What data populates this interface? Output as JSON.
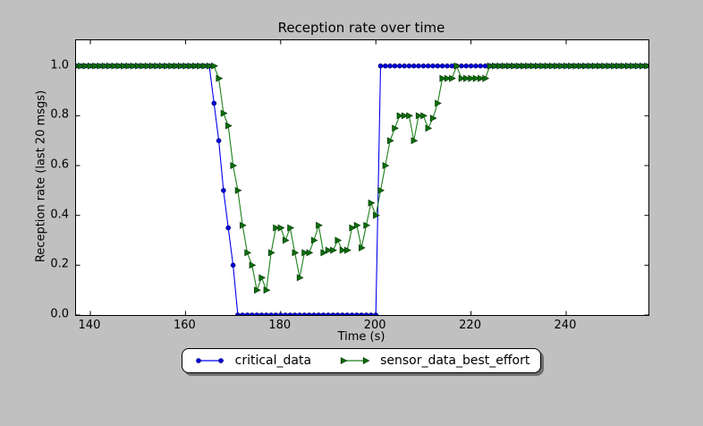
{
  "figure": {
    "background_color": "#c0c0c0",
    "plot_background_color": "#ffffff",
    "legend_shadow_color": "#6e6e6e"
  },
  "chart_data": {
    "type": "line",
    "title": "Reception rate over time",
    "xlabel": "Time (s)",
    "ylabel": "Reception rate (last 20 msgs)",
    "xlim": [
      137,
      257.3
    ],
    "ylim": [
      0,
      1.103
    ],
    "grid": false,
    "legend_position": "bottom-center",
    "xticks": [
      {
        "label": "140",
        "value": 140
      },
      {
        "label": "160",
        "value": 160
      },
      {
        "label": "180",
        "value": 180
      },
      {
        "label": "200",
        "value": 200
      },
      {
        "label": "220",
        "value": 220
      },
      {
        "label": "240",
        "value": 240
      }
    ],
    "yticks": [
      {
        "label": "0.0",
        "value": 0.0
      },
      {
        "label": "0.2",
        "value": 0.2
      },
      {
        "label": "0.4",
        "value": 0.4
      },
      {
        "label": "0.6",
        "value": 0.6
      },
      {
        "label": "0.8",
        "value": 0.8
      },
      {
        "label": "1.0",
        "value": 1.0
      }
    ],
    "point_encoding": "entries are [x,y] pairs; ['run',xStart,xEnd,y] means y is constant for every integer x in [xStart,xEnd]",
    "series": [
      {
        "name": "critical_data",
        "line_color": "#0000ee",
        "marker": "circle",
        "marker_fill": "#0000dd",
        "marker_edge": "#000080",
        "points": [
          [
            "run",
            137,
            165,
            1.0
          ],
          [
            166,
            0.85
          ],
          [
            167,
            0.7
          ],
          [
            168,
            0.5
          ],
          [
            169,
            0.35
          ],
          [
            170,
            0.2
          ],
          [
            "run",
            171,
            200,
            0.0
          ],
          [
            "run",
            201,
            257,
            1.0
          ]
        ]
      },
      {
        "name": "sensor_data_best_effort",
        "line_color": "#1a801a",
        "marker": "triangle-right",
        "marker_fill": "#0a700a",
        "marker_edge": "#033703",
        "points": [
          [
            "run",
            137,
            166,
            1.0
          ],
          [
            167,
            0.95
          ],
          [
            168,
            0.81
          ],
          [
            169,
            0.76
          ],
          [
            170,
            0.6
          ],
          [
            171,
            0.5
          ],
          [
            172,
            0.36
          ],
          [
            173,
            0.25
          ],
          [
            174,
            0.2
          ],
          [
            175,
            0.1
          ],
          [
            176,
            0.15
          ],
          [
            177,
            0.1
          ],
          [
            178,
            0.25
          ],
          [
            179,
            0.35
          ],
          [
            180,
            0.35
          ],
          [
            181,
            0.3
          ],
          [
            182,
            0.35
          ],
          [
            183,
            0.25
          ],
          [
            184,
            0.15
          ],
          [
            185,
            0.25
          ],
          [
            186,
            0.25
          ],
          [
            187,
            0.3
          ],
          [
            188,
            0.36
          ],
          [
            189,
            0.25
          ],
          [
            190,
            0.26
          ],
          [
            191,
            0.26
          ],
          [
            192,
            0.3
          ],
          [
            193,
            0.26
          ],
          [
            194,
            0.26
          ],
          [
            195,
            0.35
          ],
          [
            196,
            0.36
          ],
          [
            197,
            0.27
          ],
          [
            198,
            0.36
          ],
          [
            199,
            0.45
          ],
          [
            200,
            0.4
          ],
          [
            201,
            0.5
          ],
          [
            202,
            0.6
          ],
          [
            203,
            0.7
          ],
          [
            204,
            0.75
          ],
          [
            205,
            0.8
          ],
          [
            206,
            0.8
          ],
          [
            207,
            0.8
          ],
          [
            208,
            0.7
          ],
          [
            209,
            0.8
          ],
          [
            210,
            0.8
          ],
          [
            211,
            0.75
          ],
          [
            212,
            0.79
          ],
          [
            213,
            0.85
          ],
          [
            214,
            0.95
          ],
          [
            215,
            0.95
          ],
          [
            216,
            0.95
          ],
          [
            217,
            1.0
          ],
          [
            218,
            0.95
          ],
          [
            219,
            0.95
          ],
          [
            220,
            0.95
          ],
          [
            221,
            0.95
          ],
          [
            222,
            0.95
          ],
          [
            223,
            0.95
          ],
          [
            "run",
            224,
            257,
            1.0
          ]
        ]
      }
    ]
  }
}
